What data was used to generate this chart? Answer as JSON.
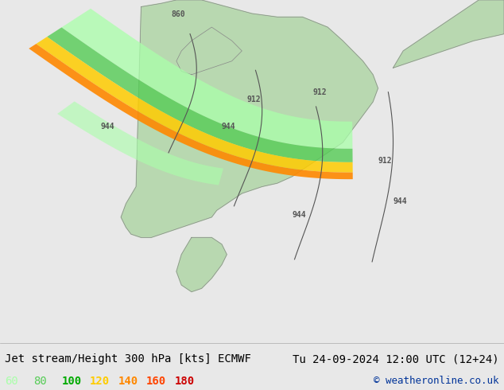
{
  "title_left": "Jet stream/Height 300 hPa [kts] ECMWF",
  "title_right": "Tu 24-09-2024 12:00 UTC (12+24)",
  "copyright": "© weatheronline.co.uk",
  "legend_values": [
    60,
    80,
    100,
    120,
    140,
    160,
    180
  ],
  "legend_colors": [
    "#aaffaa",
    "#55cc55",
    "#00aa00",
    "#ffcc00",
    "#ff8800",
    "#ff4400",
    "#cc0000"
  ],
  "background_color": "#e8e8e8",
  "map_bg_color": "#c8e8c8",
  "ocean_color": "#c8d8e8",
  "land_border_color": "#888888",
  "contour_color": "#555555",
  "title_fontsize": 10,
  "legend_fontsize": 10
}
